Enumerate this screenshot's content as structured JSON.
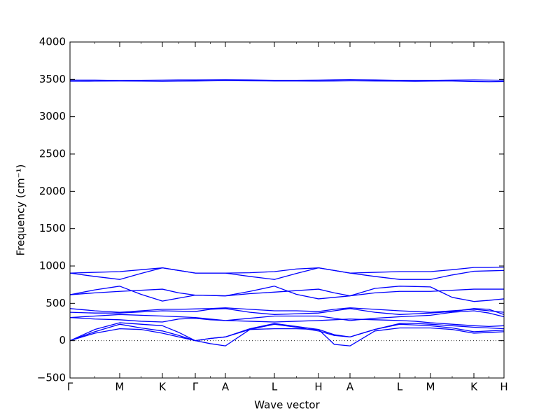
{
  "chart_data": {
    "type": "line",
    "xlabel": "Wave vector",
    "ylabel": "Frequency (cm⁻¹)",
    "x": [
      0,
      0.355,
      0.71,
      1.015,
      1.32,
      1.555,
      1.79,
      2.005,
      2.22,
      2.57,
      2.92,
      3.235,
      3.55,
      3.775,
      4.0,
      4.355,
      4.71,
      4.93,
      5.15,
      5.46,
      5.77,
      5.985,
      6.2
    ],
    "xlim": [
      0,
      6.2
    ],
    "xticks": [
      {
        "value": 0,
        "label": "Γ"
      },
      {
        "value": 0.71,
        "label": "M"
      },
      {
        "value": 1.32,
        "label": "K"
      },
      {
        "value": 1.79,
        "label": "Γ"
      },
      {
        "value": 2.22,
        "label": "A"
      },
      {
        "value": 2.92,
        "label": "L"
      },
      {
        "value": 3.55,
        "label": "H"
      },
      {
        "value": 4.0,
        "label": "A"
      },
      {
        "value": 4.71,
        "label": "L"
      },
      {
        "value": 5.15,
        "label": "M"
      },
      {
        "value": 5.77,
        "label": "K"
      },
      {
        "value": 6.2,
        "label": "H"
      }
    ],
    "ylim": [
      -500,
      4000
    ],
    "yticks": [
      {
        "value": -500,
        "label": "−500"
      },
      0,
      500,
      1000,
      1500,
      2000,
      2500,
      3000,
      3500,
      4000
    ],
    "hline": 0,
    "series": [
      {
        "color": "#0000ff",
        "values": [
          3490,
          3490,
          3485,
          3488,
          3490,
          3492,
          3492,
          3494,
          3495,
          3492,
          3488,
          3488,
          3490,
          3493,
          3496,
          3492,
          3486,
          3485,
          3486,
          3490,
          3492,
          3490,
          3488
        ]
      },
      {
        "color": "#0000ff",
        "values": [
          3475,
          3476,
          3478,
          3476,
          3474,
          3476,
          3478,
          3480,
          3482,
          3480,
          3478,
          3478,
          3476,
          3478,
          3480,
          3478,
          3476,
          3474,
          3476,
          3478,
          3470,
          3468,
          3470
        ]
      },
      {
        "color": "#0000ff",
        "values": [
          905,
          915,
          925,
          950,
          975,
          940,
          905,
          905,
          905,
          910,
          925,
          960,
          975,
          940,
          905,
          915,
          925,
          925,
          925,
          950,
          980,
          980,
          985
        ]
      },
      {
        "color": "#0000ff",
        "values": [
          905,
          860,
          820,
          900,
          975,
          940,
          905,
          905,
          905,
          860,
          820,
          900,
          975,
          940,
          905,
          860,
          820,
          820,
          820,
          880,
          930,
          935,
          940
        ]
      },
      {
        "color": "#0000ff",
        "values": [
          615,
          680,
          730,
          620,
          530,
          570,
          610,
          605,
          600,
          660,
          730,
          620,
          560,
          580,
          600,
          700,
          730,
          725,
          720,
          580,
          525,
          540,
          560
        ]
      },
      {
        "color": "#0000ff",
        "values": [
          615,
          640,
          660,
          675,
          690,
          640,
          610,
          605,
          600,
          630,
          650,
          670,
          690,
          640,
          600,
          640,
          660,
          660,
          660,
          675,
          690,
          690,
          690
        ]
      },
      {
        "color": "#0000ff",
        "values": [
          430,
          400,
          380,
          400,
          420,
          420,
          425,
          430,
          440,
          420,
          400,
          400,
          390,
          420,
          440,
          420,
          400,
          390,
          380,
          400,
          420,
          400,
          380
        ]
      },
      {
        "color": "#0000ff",
        "values": [
          380,
          370,
          370,
          385,
          400,
          395,
          390,
          420,
          430,
          380,
          350,
          360,
          370,
          400,
          430,
          380,
          350,
          360,
          370,
          390,
          430,
          420,
          350
        ]
      },
      {
        "color": "#0000ff",
        "values": [
          310,
          330,
          350,
          340,
          330,
          320,
          310,
          290,
          270,
          300,
          330,
          330,
          330,
          300,
          270,
          300,
          320,
          330,
          340,
          380,
          400,
          370,
          320
        ]
      },
      {
        "color": "#0000ff",
        "values": [
          310,
          290,
          280,
          260,
          250,
          290,
          300,
          280,
          270,
          260,
          250,
          260,
          270,
          280,
          290,
          280,
          270,
          260,
          240,
          220,
          200,
          190,
          200
        ]
      },
      {
        "color": "#0000ff",
        "values": [
          0,
          150,
          240,
          220,
          200,
          110,
          0,
          30,
          50,
          160,
          230,
          190,
          150,
          80,
          50,
          150,
          230,
          230,
          220,
          200,
          180,
          170,
          160
        ]
      },
      {
        "color": "#0000ff",
        "values": [
          0,
          120,
          220,
          170,
          130,
          70,
          0,
          30,
          50,
          150,
          220,
          180,
          130,
          70,
          50,
          150,
          220,
          210,
          200,
          170,
          120,
          130,
          140
        ]
      },
      {
        "color": "#0000ff",
        "values": [
          0,
          100,
          160,
          150,
          100,
          50,
          0,
          -40,
          -70,
          150,
          160,
          160,
          150,
          -50,
          -70,
          130,
          170,
          170,
          170,
          150,
          100,
          110,
          120
        ]
      }
    ]
  }
}
